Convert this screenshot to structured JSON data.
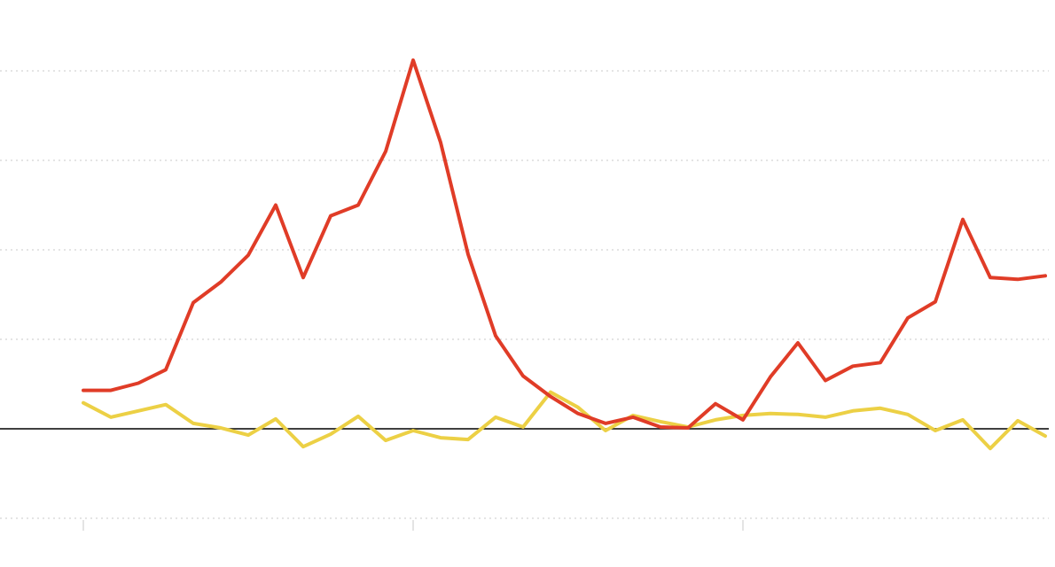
{
  "chart_data": {
    "type": "line",
    "title": "",
    "xlabel": "",
    "ylabel": "",
    "x": [
      0,
      1,
      2,
      3,
      4,
      5,
      6,
      7,
      8,
      9,
      10,
      11,
      12,
      13,
      14,
      15,
      16,
      17,
      18,
      19,
      20,
      21,
      22,
      23,
      24,
      25,
      26,
      27,
      28,
      29,
      30,
      31,
      32,
      33,
      34,
      35
    ],
    "ylim": [
      -1,
      4.2
    ],
    "yticks": [
      -1,
      0,
      1,
      2,
      3,
      4
    ],
    "xticks": [
      0,
      12,
      24
    ],
    "grid": true,
    "baseline_at_zero": true,
    "series": [
      {
        "color": "#e03c27",
        "values": [
          0.43,
          0.43,
          0.51,
          0.66,
          1.41,
          1.64,
          1.94,
          2.5,
          1.69,
          2.38,
          2.5,
          3.1,
          4.12,
          3.2,
          1.95,
          1.04,
          0.59,
          0.36,
          0.17,
          0.06,
          0.13,
          0.02,
          0.01,
          0.28,
          0.1,
          0.58,
          0.96,
          0.54,
          0.7,
          0.74,
          1.24,
          1.42,
          2.34,
          1.69,
          1.67,
          1.71
        ]
      },
      {
        "color": "#ecd045",
        "values": [
          0.29,
          0.13,
          0.2,
          0.27,
          0.06,
          0.01,
          -0.07,
          0.11,
          -0.2,
          -0.06,
          0.14,
          -0.13,
          -0.02,
          -0.1,
          -0.12,
          0.13,
          0.02,
          0.41,
          0.24,
          -0.02,
          0.15,
          0.08,
          0.02,
          0.1,
          0.15,
          0.17,
          0.16,
          0.13,
          0.2,
          0.23,
          0.16,
          -0.02,
          0.1,
          -0.22,
          0.09,
          -0.08
        ]
      }
    ]
  }
}
